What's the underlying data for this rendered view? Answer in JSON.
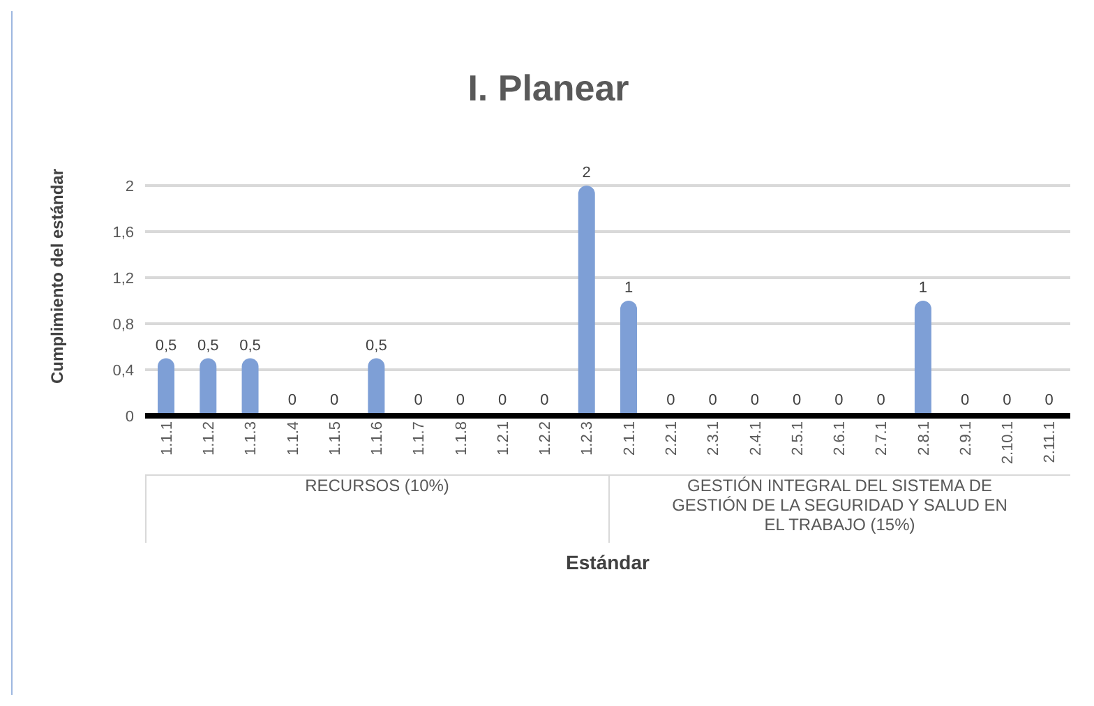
{
  "chart_data": {
    "type": "bar",
    "title": "I. Planear",
    "xlabel": "Estándar",
    "ylabel": "Cumplimiento del estándar",
    "categories": [
      "1.1.1",
      "1.1.2",
      "1.1.3",
      "1.1.4",
      "1.1.5",
      "1.1.6",
      "1.1.7",
      "1.1.8",
      "1.2.1",
      "1.2.2",
      "1.2.3",
      "2.1.1",
      "2.2.1",
      "2.3.1",
      "2.4.1",
      "2.5.1",
      "2.6.1",
      "2.7.1",
      "2.8.1",
      "2.9.1",
      "2.10.1",
      "2.11.1"
    ],
    "values": [
      0.5,
      0.5,
      0.5,
      0,
      0,
      0.5,
      0,
      0,
      0,
      0,
      2,
      1,
      0,
      0,
      0,
      0,
      0,
      0,
      1,
      0,
      0,
      0
    ],
    "value_labels": [
      "0,5",
      "0,5",
      "0,5",
      "0",
      "0",
      "0,5",
      "0",
      "0",
      "0",
      "0",
      "2",
      "1",
      "0",
      "0",
      "0",
      "0",
      "0",
      "0",
      "1",
      "0",
      "0",
      "0"
    ],
    "color": "#7e9fd6",
    "ylim": [
      0,
      2
    ],
    "yticks": [
      0,
      {
        "value": 0.4,
        "label": "0,4"
      },
      {
        "value": 0.8,
        "label": "0,8"
      },
      {
        "value": 1.2,
        "label": "1,2"
      },
      {
        "value": 1.6,
        "label": "1,6"
      },
      2
    ],
    "grid": "y",
    "annotations": [
      "RECURSOS (10%)",
      "GESTIÓN INTEGRAL DEL SISTEMA DE GESTIÓN DE LA SEGURIDAD Y SALUD EN EL TRABAJO (15%)"
    ]
  }
}
